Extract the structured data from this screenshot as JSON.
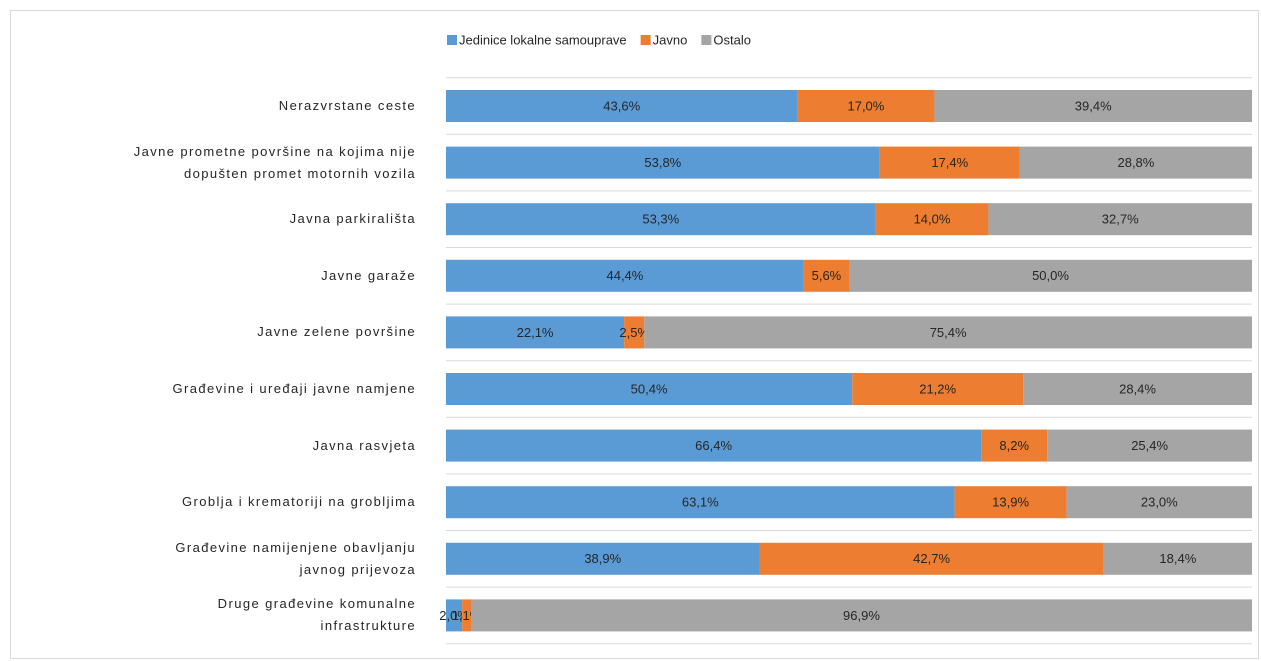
{
  "chart_data": {
    "type": "stacked-bar-horizontal",
    "categories": [
      "Nerazvrstane ceste",
      "Javne prometne površine na kojima nije\ndopušten promet motornih vozila",
      "Javna parkirališta",
      "Javne garaže",
      "Javne zelene površine",
      "Građevine i uređaji javne namjene",
      "Javna rasvjeta",
      "Groblja i krematoriji na grobljima",
      "Građevine namijenjene obavljanju\njavnog prijevoza",
      "Druge građevine komunalne\ninfrastrukture"
    ],
    "series": [
      {
        "name": "Jedinice lokalne samouprave",
        "color": "#5b9bd5",
        "values": [
          43.6,
          53.8,
          53.3,
          44.4,
          22.1,
          50.4,
          66.4,
          63.1,
          38.9,
          2.0
        ],
        "value_labels": [
          "43,6%",
          "53,8%",
          "53,3%",
          "44,4%",
          "22,1%",
          "50,4%",
          "66,4%",
          "63,1%",
          "38,9%",
          "2,0%"
        ]
      },
      {
        "name": "Javno",
        "color": "#ed7d31",
        "values": [
          17.0,
          17.4,
          14.0,
          5.6,
          2.5,
          21.2,
          8.2,
          13.9,
          42.7,
          1.1
        ],
        "value_labels": [
          "17,0%",
          "17,4%",
          "14,0%",
          "5,6%",
          "2,5%",
          "21,2%",
          "8,2%",
          "13,9%",
          "42,7%",
          "1,1%"
        ]
      },
      {
        "name": "Ostalo",
        "color": "#a5a5a5",
        "values": [
          39.4,
          28.8,
          32.7,
          50.0,
          75.4,
          28.4,
          25.4,
          23.0,
          18.4,
          96.9
        ],
        "value_labels": [
          "39,4%",
          "28,8%",
          "32,7%",
          "50,0%",
          "75,4%",
          "28,4%",
          "25,4%",
          "23,0%",
          "18,4%",
          "96,9%"
        ]
      }
    ],
    "xlim": [
      0,
      100
    ],
    "legend": "top"
  }
}
